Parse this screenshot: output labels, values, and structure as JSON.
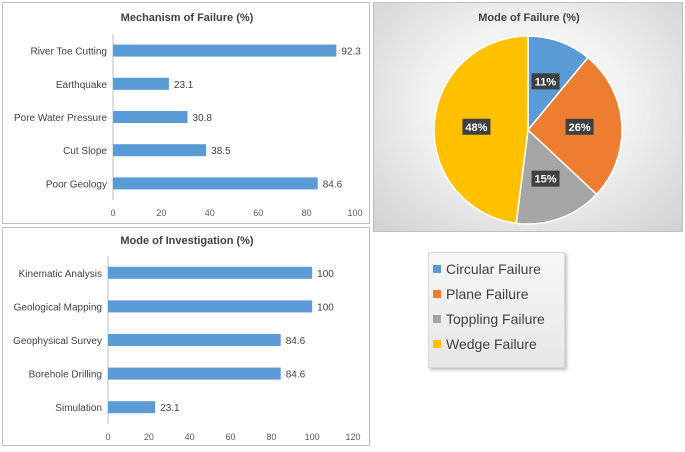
{
  "chart_data": [
    {
      "type": "bar",
      "orientation": "horizontal",
      "title": "Mechanism of Failure  (%)",
      "categories": [
        "River Toe Cutting",
        "Earthquake",
        "Pore Water Pressure",
        "Cut Slope",
        "Poor Geology"
      ],
      "values": [
        92.3,
        23.1,
        30.8,
        38.5,
        84.6
      ],
      "xlim": [
        0,
        100
      ],
      "xticks": [
        0,
        20,
        40,
        60,
        80,
        100
      ],
      "grid": false,
      "color": "#5b9bd5"
    },
    {
      "type": "bar",
      "orientation": "horizontal",
      "title": "Mode of Investigation  (%)",
      "categories": [
        "Kinematic Analysis",
        "Geological Mapping",
        "Geophysical Survey",
        "Borehole Drilling",
        "Simulation"
      ],
      "values": [
        100,
        100,
        84.6,
        84.6,
        23.1
      ],
      "xlim": [
        0,
        120
      ],
      "xticks": [
        0,
        20,
        40,
        60,
        80,
        100,
        120
      ],
      "grid": false,
      "color": "#5b9bd5"
    },
    {
      "type": "pie",
      "title": "Mode of Failure (%)",
      "slices": [
        {
          "label": "Circular Failure",
          "value": 11,
          "display": "11%",
          "color": "#5b9bd5"
        },
        {
          "label": "Plane Failure",
          "value": 26,
          "display": "26%",
          "color": "#ed7d31"
        },
        {
          "label": "Toppling Failure",
          "value": 15,
          "display": "15%",
          "color": "#a5a5a5"
        },
        {
          "label": "Wedge Failure",
          "value": 48,
          "display": "48%",
          "color": "#ffc000"
        }
      ],
      "legend_position": "separate box below pie"
    }
  ]
}
